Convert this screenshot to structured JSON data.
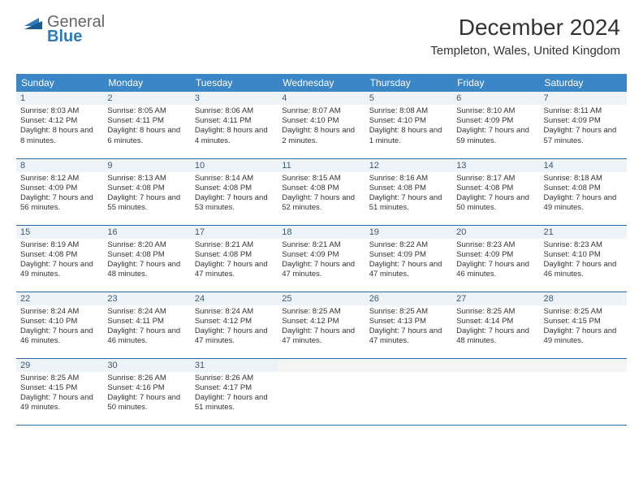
{
  "brand": {
    "word1": "General",
    "word2": "Blue"
  },
  "title": "December 2024",
  "location": "Templeton, Wales, United Kingdom",
  "colors": {
    "header_bg": "#3b86c6",
    "header_text": "#ffffff",
    "daynum_bg": "#eef3f7",
    "border": "#2b6aa3",
    "brand_blue": "#2b7bbf"
  },
  "weekdays": [
    "Sunday",
    "Monday",
    "Tuesday",
    "Wednesday",
    "Thursday",
    "Friday",
    "Saturday"
  ],
  "days": [
    {
      "n": 1,
      "sr": "8:03 AM",
      "ss": "4:12 PM",
      "dl": "8 hours and 8 minutes."
    },
    {
      "n": 2,
      "sr": "8:05 AM",
      "ss": "4:11 PM",
      "dl": "8 hours and 6 minutes."
    },
    {
      "n": 3,
      "sr": "8:06 AM",
      "ss": "4:11 PM",
      "dl": "8 hours and 4 minutes."
    },
    {
      "n": 4,
      "sr": "8:07 AM",
      "ss": "4:10 PM",
      "dl": "8 hours and 2 minutes."
    },
    {
      "n": 5,
      "sr": "8:08 AM",
      "ss": "4:10 PM",
      "dl": "8 hours and 1 minute."
    },
    {
      "n": 6,
      "sr": "8:10 AM",
      "ss": "4:09 PM",
      "dl": "7 hours and 59 minutes."
    },
    {
      "n": 7,
      "sr": "8:11 AM",
      "ss": "4:09 PM",
      "dl": "7 hours and 57 minutes."
    },
    {
      "n": 8,
      "sr": "8:12 AM",
      "ss": "4:09 PM",
      "dl": "7 hours and 56 minutes."
    },
    {
      "n": 9,
      "sr": "8:13 AM",
      "ss": "4:08 PM",
      "dl": "7 hours and 55 minutes."
    },
    {
      "n": 10,
      "sr": "8:14 AM",
      "ss": "4:08 PM",
      "dl": "7 hours and 53 minutes."
    },
    {
      "n": 11,
      "sr": "8:15 AM",
      "ss": "4:08 PM",
      "dl": "7 hours and 52 minutes."
    },
    {
      "n": 12,
      "sr": "8:16 AM",
      "ss": "4:08 PM",
      "dl": "7 hours and 51 minutes."
    },
    {
      "n": 13,
      "sr": "8:17 AM",
      "ss": "4:08 PM",
      "dl": "7 hours and 50 minutes."
    },
    {
      "n": 14,
      "sr": "8:18 AM",
      "ss": "4:08 PM",
      "dl": "7 hours and 49 minutes."
    },
    {
      "n": 15,
      "sr": "8:19 AM",
      "ss": "4:08 PM",
      "dl": "7 hours and 49 minutes."
    },
    {
      "n": 16,
      "sr": "8:20 AM",
      "ss": "4:08 PM",
      "dl": "7 hours and 48 minutes."
    },
    {
      "n": 17,
      "sr": "8:21 AM",
      "ss": "4:08 PM",
      "dl": "7 hours and 47 minutes."
    },
    {
      "n": 18,
      "sr": "8:21 AM",
      "ss": "4:09 PM",
      "dl": "7 hours and 47 minutes."
    },
    {
      "n": 19,
      "sr": "8:22 AM",
      "ss": "4:09 PM",
      "dl": "7 hours and 47 minutes."
    },
    {
      "n": 20,
      "sr": "8:23 AM",
      "ss": "4:09 PM",
      "dl": "7 hours and 46 minutes."
    },
    {
      "n": 21,
      "sr": "8:23 AM",
      "ss": "4:10 PM",
      "dl": "7 hours and 46 minutes."
    },
    {
      "n": 22,
      "sr": "8:24 AM",
      "ss": "4:10 PM",
      "dl": "7 hours and 46 minutes."
    },
    {
      "n": 23,
      "sr": "8:24 AM",
      "ss": "4:11 PM",
      "dl": "7 hours and 46 minutes."
    },
    {
      "n": 24,
      "sr": "8:24 AM",
      "ss": "4:12 PM",
      "dl": "7 hours and 47 minutes."
    },
    {
      "n": 25,
      "sr": "8:25 AM",
      "ss": "4:12 PM",
      "dl": "7 hours and 47 minutes."
    },
    {
      "n": 26,
      "sr": "8:25 AM",
      "ss": "4:13 PM",
      "dl": "7 hours and 47 minutes."
    },
    {
      "n": 27,
      "sr": "8:25 AM",
      "ss": "4:14 PM",
      "dl": "7 hours and 48 minutes."
    },
    {
      "n": 28,
      "sr": "8:25 AM",
      "ss": "4:15 PM",
      "dl": "7 hours and 49 minutes."
    },
    {
      "n": 29,
      "sr": "8:25 AM",
      "ss": "4:15 PM",
      "dl": "7 hours and 49 minutes."
    },
    {
      "n": 30,
      "sr": "8:26 AM",
      "ss": "4:16 PM",
      "dl": "7 hours and 50 minutes."
    },
    {
      "n": 31,
      "sr": "8:26 AM",
      "ss": "4:17 PM",
      "dl": "7 hours and 51 minutes."
    }
  ],
  "labels": {
    "sunrise": "Sunrise:",
    "sunset": "Sunset:",
    "daylight": "Daylight:"
  },
  "layout": {
    "first_weekday_index": 0,
    "cells_total": 35
  }
}
